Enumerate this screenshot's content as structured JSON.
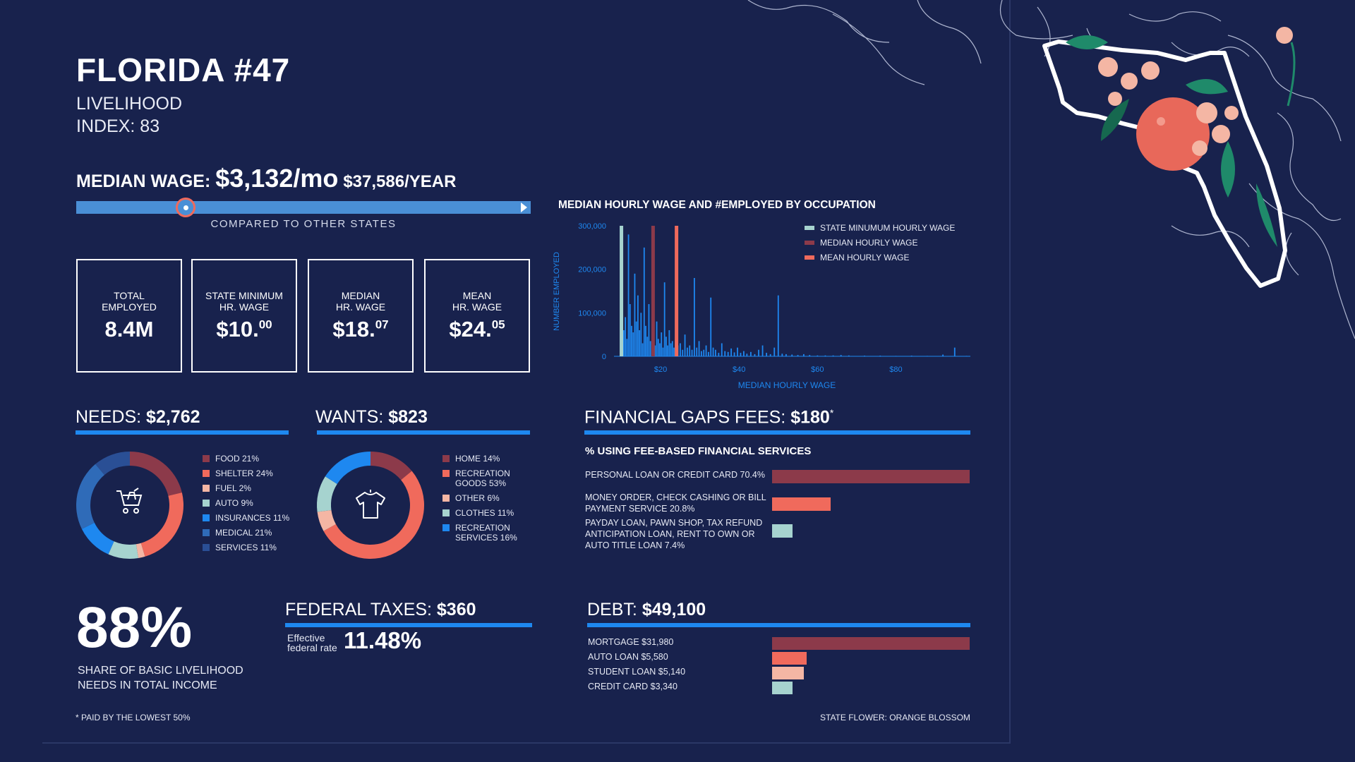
{
  "header": {
    "title": "FLORIDA #47",
    "subtitle_line1": "LIVELIHOOD",
    "subtitle_line2": "INDEX: 83"
  },
  "median_wage": {
    "label": "MEDIAN WAGE:",
    "monthly": "$3,132/mo",
    "yearly": "$37,586/YEAR",
    "compared_caption": "COMPARED TO OTHER STATES",
    "rank_fraction": 0.24
  },
  "stats": [
    {
      "label1": "TOTAL",
      "label2": "EMPLOYED",
      "value": "8.4M",
      "sup": ""
    },
    {
      "label1": "STATE MINIMUM",
      "label2": "HR. WAGE",
      "value": "$10.",
      "sup": "00"
    },
    {
      "label1": "MEDIAN",
      "label2": "HR. WAGE",
      "value": "$18.",
      "sup": "07"
    },
    {
      "label1": "MEAN",
      "label2": "HR. WAGE",
      "value": "$24.",
      "sup": "05"
    }
  ],
  "needs": {
    "label": "NEEDS:",
    "amount": "$2,762"
  },
  "wants": {
    "label": "WANTS:",
    "amount": "$823"
  },
  "fees": {
    "label": "FINANCIAL GAPS FEES:",
    "amount": "$180",
    "mark": "*",
    "subtitle": "% USING FEE-BASED FINANCIAL SERVICES"
  },
  "taxes": {
    "label": "FEDERAL TAXES:",
    "amount": "$360",
    "rate_label_1": "Effective",
    "rate_label_2": "federal rate",
    "rate": "11.48%"
  },
  "debt_section": {
    "label": "DEBT:",
    "amount": "$49,100"
  },
  "share": {
    "value": "88%",
    "line1": "SHARE OF BASIC LIVELIHOOD",
    "line2": "NEEDS IN TOTAL INCOME"
  },
  "footnote": "* PAID BY THE LOWEST 50%",
  "state_flower": "STATE FLOWER: ORANGE BLOSSOM",
  "colors": {
    "background": "#18224d",
    "accent_blue": "#1e88f0",
    "maroon": "#8c3a4a",
    "coral": "#f06a5c",
    "peach": "#f4b6a4",
    "mint": "#a6d3cf",
    "bright_blue": "#1e88f0",
    "steel_blue": "#2f6bb8",
    "navy_blue": "#2a4f95"
  },
  "icons": {
    "needs": "shopping-cart-icon",
    "wants": "t-shirt-icon",
    "map": "florida-map-orange-blossom-illustration"
  },
  "chart_data": [
    {
      "type": "bar",
      "title": "MEDIAN HOURLY WAGE AND #EMPLOYED BY OCCUPATION",
      "xlabel": "MEDIAN HOURLY WAGE",
      "ylabel": "NUMBER EMPLOYED",
      "x_ticks": [
        "$20",
        "$40",
        "$60",
        "$80"
      ],
      "y_ticks": [
        "0",
        "100,000",
        "200,000",
        "300,000"
      ],
      "xlim": [
        9,
        99
      ],
      "ylim": [
        0,
        300000
      ],
      "legend": [
        {
          "name": "STATE MINUMUM HOURLY WAGE",
          "color": "#a6d3cf",
          "x": 10.0
        },
        {
          "name": "MEDIAN HOURLY WAGE",
          "color": "#8c3a4a",
          "x": 18.07
        },
        {
          "name": "MEAN HOURLY WAGE",
          "color": "#f06a5c",
          "x": 24.05
        }
      ],
      "legend_position": "top-right",
      "series": [
        {
          "x": [
            10.2,
            10.6,
            11.0,
            11.4,
            11.8,
            12.2,
            12.6,
            13.0,
            13.4,
            13.8,
            14.2,
            14.6,
            15.0,
            15.4,
            15.8,
            16.2,
            16.6,
            17.0,
            17.4,
            17.8,
            18.2,
            18.6,
            19.0,
            19.4,
            19.8,
            20.2,
            20.6,
            21.0,
            21.4,
            21.8,
            22.2,
            22.6,
            23.0,
            23.4,
            23.8,
            24.4,
            25.0,
            25.6,
            26.2,
            26.8,
            27.4,
            28.0,
            28.6,
            29.2,
            29.8,
            30.4,
            31.0,
            31.6,
            32.2,
            32.8,
            33.4,
            34.0,
            34.8,
            35.6,
            36.4,
            37.2,
            38.0,
            38.8,
            39.6,
            40.4,
            41.2,
            42.0,
            43.0,
            44.0,
            45.0,
            46.0,
            47.0,
            48.0,
            49.0,
            50.0,
            51.0,
            52.0,
            53.5,
            55.0,
            56.5,
            58.0,
            60.0,
            62.0,
            64.0,
            66.0,
            68.0,
            72.0,
            76.0,
            80.0,
            84.0,
            88.0,
            92.0,
            95.0,
            98.0
          ],
          "values": [
            300000,
            60000,
            90000,
            40000,
            280000,
            120000,
            70000,
            55000,
            190000,
            80000,
            140000,
            60000,
            100000,
            30000,
            250000,
            70000,
            45000,
            120000,
            35000,
            90000,
            60000,
            25000,
            80000,
            40000,
            30000,
            55000,
            20000,
            170000,
            45000,
            25000,
            60000,
            30000,
            35000,
            20000,
            40000,
            25000,
            30000,
            15000,
            50000,
            20000,
            25000,
            15000,
            180000,
            20000,
            35000,
            12000,
            15000,
            25000,
            10000,
            135000,
            20000,
            15000,
            8000,
            30000,
            12000,
            10000,
            18000,
            9000,
            20000,
            8000,
            12000,
            6000,
            10000,
            5000,
            15000,
            25000,
            8000,
            5000,
            20000,
            140000,
            6000,
            5000,
            4000,
            3000,
            5000,
            3000,
            2000,
            2000,
            2000,
            3000,
            2000,
            1500,
            1500,
            1000,
            1500,
            1000,
            4000,
            20000,
            1000
          ]
        }
      ]
    },
    {
      "type": "pie",
      "title": "NEEDS",
      "labels": [
        "FOOD 21%",
        "SHELTER 24%",
        "FUEL 2%",
        "AUTO 9%",
        "INSURANCES 11%",
        "MEDICAL 21%",
        "SERVICES 11%"
      ],
      "values": [
        21,
        24,
        2,
        9,
        11,
        21,
        11
      ],
      "colors": [
        "#8c3a4a",
        "#f06a5c",
        "#f4b6a4",
        "#a6d3cf",
        "#1e88f0",
        "#2f6bb8",
        "#2a4f95"
      ]
    },
    {
      "type": "pie",
      "title": "WANTS",
      "labels": [
        "HOME 14%",
        "RECREATION GOODS 53%",
        "OTHER 6%",
        "CLOTHES 11%",
        "RECREATION SERVICES 16%"
      ],
      "values": [
        14,
        53,
        6,
        11,
        16
      ],
      "colors": [
        "#8c3a4a",
        "#f06a5c",
        "#f4b6a4",
        "#a6d3cf",
        "#1e88f0"
      ]
    },
    {
      "type": "bar",
      "title": "% USING FEE-BASED FINANCIAL SERVICES",
      "orientation": "horizontal",
      "categories": [
        "PERSONAL LOAN OR CREDIT CARD 70.4%",
        "MONEY ORDER, CHECK CASHING OR BILL PAYMENT SERVICE 20.8%",
        "PAYDAY LOAN, PAWN SHOP, TAX REFUND ANTICIPATION LOAN, RENT TO OWN OR AUTO TITLE LOAN 7.4%"
      ],
      "values": [
        70.4,
        20.8,
        7.4
      ],
      "colors": [
        "#8c3a4a",
        "#f06a5c",
        "#a6d3cf"
      ]
    },
    {
      "type": "bar",
      "title": "DEBT",
      "orientation": "horizontal",
      "categories": [
        "MORTGAGE $31,980",
        "AUTO LOAN $5,580",
        "STUDENT LOAN $5,140",
        "CREDIT CARD $3,340"
      ],
      "values": [
        31980,
        5580,
        5140,
        3340
      ],
      "colors": [
        "#8c3a4a",
        "#f06a5c",
        "#f4b6a4",
        "#a6d3cf"
      ]
    }
  ]
}
